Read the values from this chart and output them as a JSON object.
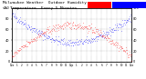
{
  "bg_color": "#ffffff",
  "blue_color": "#0000ff",
  "red_color": "#ff0000",
  "ylim_left": [
    0,
    100
  ],
  "ylim_right": [
    0,
    100
  ],
  "xlim": [
    0,
    287
  ],
  "title_left": "Milwaukee Weather  Outdoor Humidity",
  "title_right": "vs Temperature  Every 5 Minutes",
  "title_fontsize": 3.2,
  "tick_fontsize": 2.5,
  "n_points": 288,
  "humidity_start": 88,
  "humidity_mid": 38,
  "humidity_end": 82,
  "temp_start": 10,
  "temp_mid": 68,
  "temp_end": 18,
  "noise_scale": 3.5
}
